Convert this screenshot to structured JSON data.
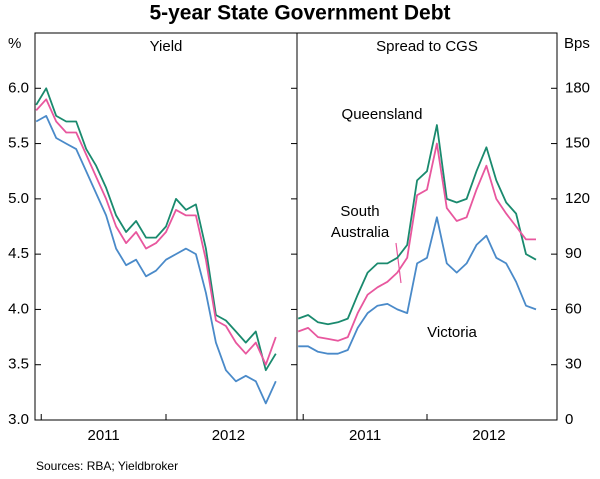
{
  "title": "5-year State Government Debt",
  "source": "Sources: RBA; Yieldbroker",
  "chart_data": [
    {
      "type": "line",
      "panel_title": "Yield",
      "y_label": "%",
      "x": [
        2010.96,
        2011.04,
        2011.12,
        2011.2,
        2011.28,
        2011.36,
        2011.44,
        2011.52,
        2011.6,
        2011.68,
        2011.76,
        2011.84,
        2011.92,
        2012.0,
        2012.08,
        2012.16,
        2012.24,
        2012.32,
        2012.4,
        2012.48,
        2012.56,
        2012.64,
        2012.72,
        2012.8,
        2012.88
      ],
      "xlim": [
        2010.95,
        2013.05
      ],
      "xticks": [
        2011,
        2012
      ],
      "x_labels": [
        {
          "value": 2011.5,
          "label": "2011"
        },
        {
          "value": 2012.5,
          "label": "2012"
        }
      ],
      "ylim": [
        3,
        6.5
      ],
      "yticks": [
        {
          "value": 3,
          "label": "3.0"
        },
        3.5,
        {
          "value": 4,
          "label": "4.0"
        },
        4.5,
        {
          "value": 5,
          "label": "5.0"
        },
        5.5,
        {
          "value": 6,
          "label": "6.0"
        }
      ],
      "series": [
        {
          "color": "#1a8a6e",
          "values": [
            5.85,
            6.0,
            5.75,
            5.7,
            5.7,
            5.45,
            5.3,
            5.1,
            4.85,
            4.7,
            4.8,
            4.65,
            4.65,
            4.75,
            5.0,
            4.9,
            4.95,
            4.55,
            3.95,
            3.9,
            3.8,
            3.7,
            3.8,
            3.45,
            3.6
          ]
        },
        {
          "color": "#e8579e",
          "values": [
            5.8,
            5.9,
            5.7,
            5.6,
            5.6,
            5.4,
            5.2,
            5.0,
            4.75,
            4.6,
            4.7,
            4.55,
            4.6,
            4.7,
            4.9,
            4.85,
            4.85,
            4.45,
            3.9,
            3.85,
            3.7,
            3.6,
            3.7,
            3.5,
            3.75
          ]
        },
        {
          "color": "#4a8ac9",
          "values": [
            5.7,
            5.75,
            5.55,
            5.5,
            5.45,
            5.25,
            5.05,
            4.85,
            4.55,
            4.4,
            4.45,
            4.3,
            4.35,
            4.45,
            4.5,
            4.55,
            4.5,
            4.15,
            3.7,
            3.45,
            3.35,
            3.4,
            3.35,
            3.15,
            3.35
          ]
        }
      ]
    },
    {
      "type": "line",
      "panel_title": "Spread to CGS",
      "y2_label": "Bps",
      "x": [
        2010.96,
        2011.04,
        2011.12,
        2011.2,
        2011.28,
        2011.36,
        2011.44,
        2011.52,
        2011.6,
        2011.68,
        2011.76,
        2011.84,
        2011.92,
        2012.0,
        2012.08,
        2012.16,
        2012.24,
        2012.32,
        2012.4,
        2012.48,
        2012.56,
        2012.64,
        2012.72,
        2012.8,
        2012.88
      ],
      "xlim": [
        2010.95,
        2013.05
      ],
      "xticks": [
        2011,
        2012
      ],
      "x_labels": [
        {
          "value": 2011.5,
          "label": "2011"
        },
        {
          "value": 2012.5,
          "label": "2012"
        }
      ],
      "y2lim": [
        0,
        210
      ],
      "y2ticks": [
        0,
        30,
        60,
        90,
        120,
        150,
        180
      ],
      "series": [
        {
          "name": "Queensland",
          "color": "#1a8a6e",
          "axis": "y2",
          "values": [
            55,
            57,
            53,
            52,
            53,
            55,
            68,
            80,
            85,
            85,
            88,
            95,
            130,
            135,
            160,
            120,
            118,
            120,
            135,
            148,
            130,
            118,
            112,
            90,
            87
          ]
        },
        {
          "name": "South Australia",
          "color": "#e8579e",
          "axis": "y2",
          "values": [
            48,
            50,
            45,
            44,
            43,
            45,
            58,
            68,
            72,
            75,
            80,
            88,
            122,
            125,
            150,
            115,
            108,
            110,
            125,
            138,
            120,
            112,
            105,
            98,
            98
          ]
        },
        {
          "name": "Victoria",
          "color": "#4a8ac9",
          "axis": "y2",
          "values": [
            40,
            40,
            37,
            36,
            36,
            38,
            50,
            58,
            62,
            63,
            60,
            58,
            85,
            88,
            110,
            85,
            80,
            85,
            95,
            100,
            88,
            85,
            75,
            62,
            60
          ]
        }
      ]
    }
  ]
}
